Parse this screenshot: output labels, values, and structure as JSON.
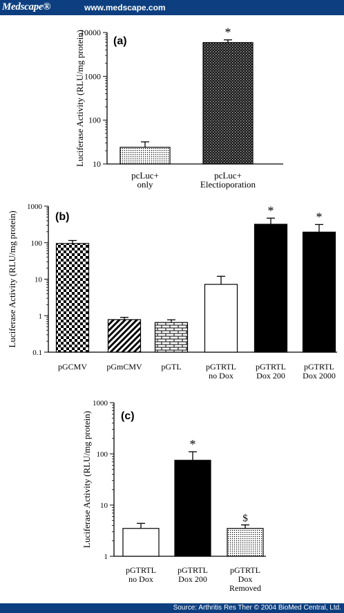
{
  "header": {
    "brand": "Medscape®",
    "url": "www.medscape.com"
  },
  "footer": {
    "source": "Source: Arthritis Res Ther © 2004 BioMed Central, Ltd."
  },
  "chart_data": [
    {
      "type": "bar",
      "panel_label": "(a)",
      "ylabel": "Luciferase Activity (RLU/mg protein)",
      "yscale": "log",
      "ylim": [
        10,
        10000
      ],
      "yticks": [
        "10",
        "100",
        "1000",
        "10000"
      ],
      "categories": [
        "pcLuc+\nonly",
        "pcLuc+\nElectioporation"
      ],
      "values": [
        24,
        5900
      ],
      "errors": [
        8,
        900
      ],
      "annotations": [
        "",
        "*"
      ],
      "fills": [
        "dots",
        "crosshatch"
      ]
    },
    {
      "type": "bar",
      "panel_label": "(b)",
      "ylabel": "Luciferase Activity (RLU/mg protein)",
      "yscale": "log",
      "ylim": [
        0.1,
        1000
      ],
      "yticks": [
        "0.1",
        "1",
        "10",
        "100",
        "1000"
      ],
      "categories": [
        "pGCMV",
        "pGmCMV",
        "pGTL",
        "pGTRTL\nno Dox",
        "pGTRTL\nDox 200",
        "pGTRTL\nDox 2000"
      ],
      "values": [
        95,
        0.78,
        0.65,
        7.2,
        320,
        195
      ],
      "errors": [
        20,
        0.12,
        0.12,
        4.8,
        150,
        120
      ],
      "annotations": [
        "",
        "",
        "",
        "",
        "*",
        "*"
      ],
      "fills": [
        "checker",
        "diagonal",
        "brick",
        "white",
        "black",
        "black"
      ]
    },
    {
      "type": "bar",
      "panel_label": "(c)",
      "ylabel": "Luciferase Activity (RLU/mg protein)",
      "yscale": "log",
      "ylim": [
        1,
        1000
      ],
      "yticks": [
        "1",
        "10",
        "100",
        "1000"
      ],
      "categories": [
        "pGTRTL\nno Dox",
        "pGTRTL\nDox 200",
        "pGTRTL\nDox\nRemoved"
      ],
      "values": [
        3.5,
        75,
        3.5
      ],
      "errors": [
        0.9,
        35,
        0.6
      ],
      "annotations": [
        "",
        "*",
        "$"
      ],
      "fills": [
        "white",
        "black",
        "dots"
      ]
    }
  ]
}
